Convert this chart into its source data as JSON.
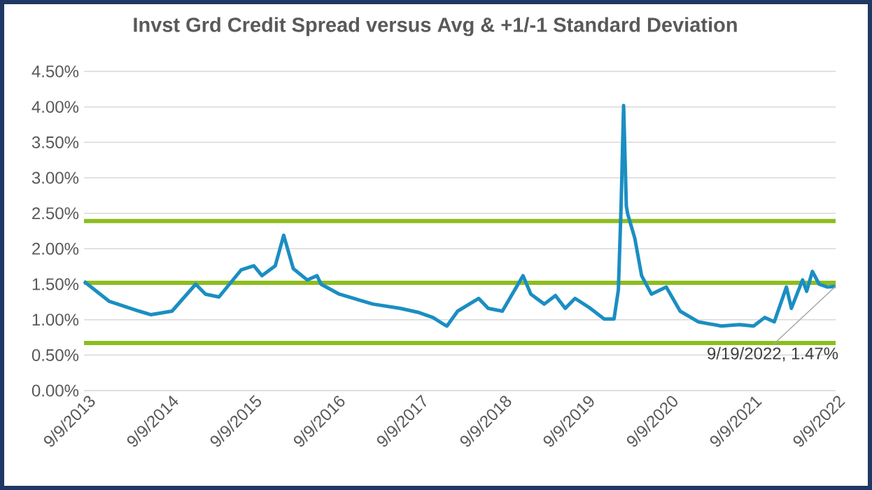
{
  "chart_data": {
    "type": "line",
    "title": "Invst Grd Credit Spread versus Avg & +1/-1 Standard Deviation",
    "x": [
      "2013-09-09",
      "2013-12-28",
      "2014-05-09",
      "2014-06-30",
      "2014-09-30",
      "2015-01-12",
      "2015-02-24",
      "2015-04-24",
      "2015-07-30",
      "2015-09-24",
      "2015-10-30",
      "2015-12-27",
      "2016-02-02",
      "2016-03-15",
      "2016-05-15",
      "2016-06-27",
      "2016-07-15",
      "2016-10-03",
      "2017-02-27",
      "2017-06-27",
      "2017-09-18",
      "2017-11-18",
      "2018-01-06",
      "2018-01-18",
      "2018-03-06",
      "2018-06-06",
      "2018-07-18",
      "2018-09-18",
      "2018-12-18",
      "2019-01-21",
      "2019-03-21",
      "2019-05-09",
      "2019-06-21",
      "2019-08-03",
      "2019-10-09",
      "2019-12-09",
      "2020-01-21",
      "2020-02-09",
      "2020-02-21",
      "2020-03-03",
      "2020-03-15",
      "2020-03-21",
      "2020-04-21",
      "2020-05-21",
      "2020-07-03",
      "2020-09-06",
      "2020-11-06",
      "2021-01-24",
      "2021-05-06",
      "2021-07-24",
      "2021-09-24",
      "2021-11-12",
      "2021-12-24",
      "2022-02-15",
      "2022-03-09",
      "2022-04-27",
      "2022-05-15",
      "2022-06-09",
      "2022-07-09",
      "2022-08-15",
      "2022-09-19"
    ],
    "series": [
      {
        "color": "#1b8ec2",
        "values": [
          1.54,
          1.26,
          1.12,
          1.07,
          1.12,
          1.5,
          1.36,
          1.32,
          1.7,
          1.76,
          1.62,
          1.76,
          2.19,
          1.72,
          1.56,
          1.62,
          1.5,
          1.36,
          1.22,
          1.16,
          1.1,
          1.03,
          0.93,
          0.91,
          1.12,
          1.3,
          1.16,
          1.12,
          1.62,
          1.36,
          1.22,
          1.34,
          1.16,
          1.3,
          1.16,
          1.01,
          1.01,
          1.42,
          2.6,
          4.02,
          2.6,
          2.49,
          2.15,
          1.62,
          1.36,
          1.46,
          1.12,
          0.97,
          0.91,
          0.93,
          0.91,
          1.03,
          0.97,
          1.46,
          1.16,
          1.56,
          1.4,
          1.68,
          1.5,
          1.46,
          1.47
        ]
      }
    ],
    "xlim": [
      "2013-09-09",
      "2022-09-19"
    ],
    "xticks": [
      {
        "value": "2013-09-09",
        "label": "9/9/2013"
      },
      {
        "value": "2014-09-09",
        "label": "9/9/2014"
      },
      {
        "value": "2015-09-09",
        "label": "9/9/2015"
      },
      {
        "value": "2016-09-09",
        "label": "9/9/2016"
      },
      {
        "value": "2017-09-09",
        "label": "9/9/2017"
      },
      {
        "value": "2018-09-09",
        "label": "9/9/2018"
      },
      {
        "value": "2019-09-09",
        "label": "9/9/2019"
      },
      {
        "value": "2020-09-09",
        "label": "9/9/2020"
      },
      {
        "value": "2021-09-09",
        "label": "9/9/2021"
      },
      {
        "value": "2022-09-09",
        "label": "9/9/2022"
      }
    ],
    "ylim": [
      0,
      4.5
    ],
    "yticks": [
      {
        "value": 0,
        "label": "0.00%"
      },
      {
        "value": 0.5,
        "label": "0.50%"
      },
      {
        "value": 1,
        "label": "1.00%"
      },
      {
        "value": 1.5,
        "label": "1.50%"
      },
      {
        "value": 2,
        "label": "2.00%"
      },
      {
        "value": 2.5,
        "label": "2.50%"
      },
      {
        "value": 3,
        "label": "3.00%"
      },
      {
        "value": 3.5,
        "label": "3.50%"
      },
      {
        "value": 4,
        "label": "4.00%"
      },
      {
        "value": 4.5,
        "label": "4.50%"
      }
    ],
    "ref_lines": [
      {
        "axis": "y",
        "value": 2.39,
        "color": "#8cbd1e"
      },
      {
        "axis": "y",
        "value": 1.52,
        "color": "#8cbd1e"
      },
      {
        "axis": "y",
        "value": 0.67,
        "color": "#8cbd1e"
      }
    ],
    "annotations": [
      {
        "text": "9/19/2022, 1.47%",
        "x": "2022-09-19",
        "y": 1.47
      }
    ],
    "grid": "y",
    "marker": "none",
    "line_style": "solid"
  }
}
